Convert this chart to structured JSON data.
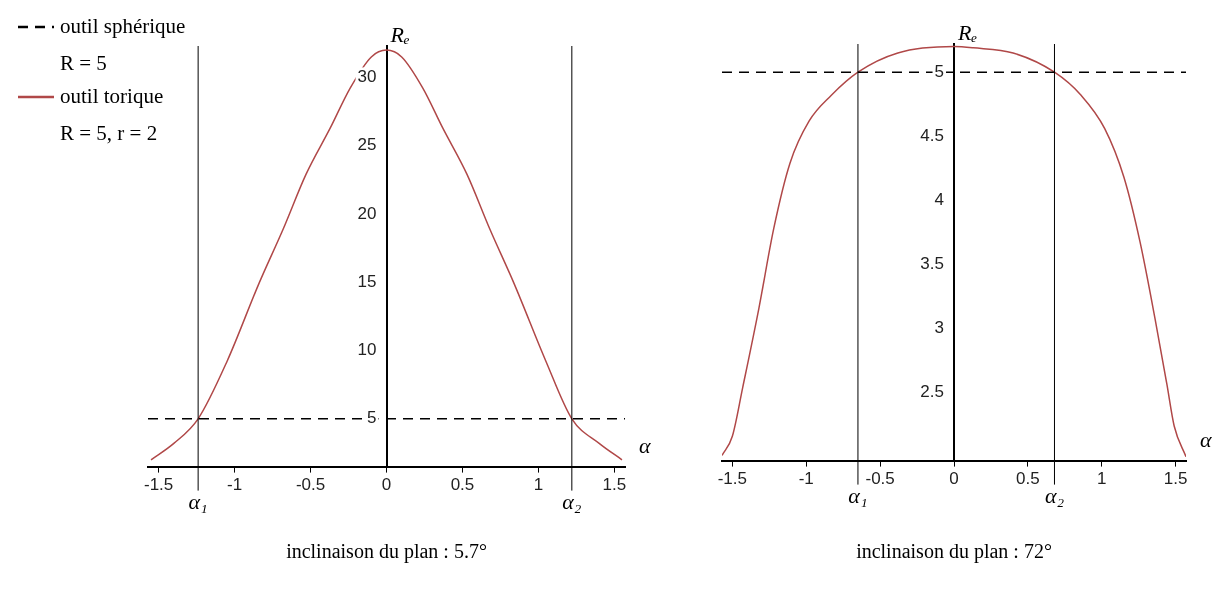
{
  "chart_data": [
    {
      "type": "line",
      "title": "inclinaison du plan : 5.7°",
      "xlabel": "α",
      "ylabel": "Rₑ",
      "xlim": [
        -1.57,
        1.57
      ],
      "ylim": [
        1.5,
        32.3
      ],
      "xticks": [
        -1.5,
        -1,
        -0.5,
        0,
        0.5,
        1,
        1.5
      ],
      "yticks": [
        5,
        10,
        15,
        20,
        25,
        30
      ],
      "grid": false,
      "legend": "top left",
      "marker": "none",
      "series": [
        {
          "name": "outil sphérique\nR = 5",
          "color": "#000000",
          "line_style": "dashed",
          "x": [
            -1.57,
            1.57
          ],
          "values": [
            5,
            5
          ]
        },
        {
          "name": "outil torique\nR = 5, r = 2",
          "color": "#b04848",
          "line_style": "solid",
          "x": [
            -1.55,
            -1.4,
            -1.24,
            -1.05,
            -0.84,
            -0.68,
            -0.53,
            -0.37,
            -0.24,
            -0.1,
            0,
            0.1,
            0.24,
            0.37,
            0.53,
            0.68,
            0.84,
            1.05,
            1.22,
            1.4,
            1.55
          ],
          "values": [
            2,
            3.2,
            5,
            9.2,
            14.9,
            18.9,
            22.9,
            26.3,
            29.2,
            31.5,
            32,
            31.5,
            29.2,
            26.3,
            22.9,
            18.9,
            14.9,
            9.2,
            5,
            3.2,
            2
          ]
        }
      ],
      "ref_lines": [
        {
          "axis": "x",
          "value": -1.24,
          "label": "α₁"
        },
        {
          "axis": "x",
          "value": 1.22,
          "label": "α₂"
        }
      ]
    },
    {
      "type": "line",
      "title": "inclinaison du plan : 72°",
      "xlabel": "α",
      "ylabel": "Rₑ",
      "xlim": [
        -1.57,
        1.57
      ],
      "ylim": [
        1.97,
        5.22
      ],
      "xticks": [
        -1.5,
        -1,
        -0.5,
        0,
        0.5,
        1,
        1.5
      ],
      "yticks": [
        2.5,
        3,
        3.5,
        4,
        4.5,
        5
      ],
      "grid": false,
      "marker": "none",
      "series": [
        {
          "color": "#000000",
          "line_style": "dashed",
          "x": [
            -1.57,
            1.57
          ],
          "values": [
            5,
            5
          ]
        },
        {
          "color": "#b04848",
          "line_style": "solid",
          "x": [
            -1.57,
            -1.5,
            -1.43,
            -1.32,
            -1.22,
            -1.11,
            -0.98,
            -0.83,
            -0.65,
            -0.38,
            0,
            0.13,
            0.4,
            0.68,
            0.86,
            1.02,
            1.15,
            1.26,
            1.36,
            1.44,
            1.49,
            1.57
          ],
          "values": [
            2.01,
            2.16,
            2.54,
            3.16,
            3.78,
            4.29,
            4.62,
            4.82,
            5,
            5.15,
            5.2,
            5.19,
            5.15,
            5,
            4.82,
            4.56,
            4.18,
            3.67,
            3.08,
            2.57,
            2.24,
            2
          ]
        }
      ],
      "ref_lines": [
        {
          "axis": "x",
          "value": -0.65,
          "label": "α₁"
        },
        {
          "axis": "x",
          "value": 0.68,
          "label": "α₂"
        }
      ]
    }
  ]
}
